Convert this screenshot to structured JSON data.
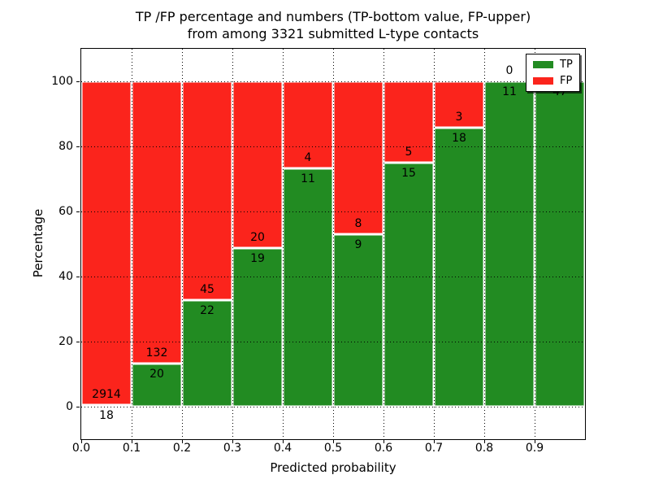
{
  "figure": {
    "title_line1": "TP /FP percentage and numbers (TP-bottom value, FP-upper)",
    "title_line2": "from among 3321 submitted L-type contacts",
    "xlabel": "Predicted probability",
    "ylabel": "Percentage"
  },
  "legend": {
    "items": [
      {
        "label": "TP",
        "color": "#228b22"
      },
      {
        "label": "FP",
        "color": "#fb241c"
      }
    ]
  },
  "colors": {
    "tp": "#228b22",
    "fp": "#fb241c",
    "background": "#ffffff",
    "text": "#000000",
    "grid": "#000000"
  },
  "chart_data": {
    "type": "bar",
    "stacked": true,
    "normalized": "each bar stacks to 100%",
    "title": "TP /FP percentage and numbers (TP-bottom value, FP-upper) from among 3321 submitted L-type contacts",
    "xlabel": "Predicted probability",
    "ylabel": "Percentage",
    "total_contacts": 3321,
    "bin_edges": [
      0.0,
      0.1,
      0.2,
      0.3,
      0.4,
      0.5,
      0.6,
      0.7,
      0.8,
      0.9,
      1.0
    ],
    "categories": [
      "0.0-0.1",
      "0.1-0.2",
      "0.2-0.3",
      "0.3-0.4",
      "0.4-0.5",
      "0.5-0.6",
      "0.6-0.7",
      "0.7-0.8",
      "0.8-0.9",
      "0.9-1.0"
    ],
    "series": [
      {
        "name": "TP",
        "color": "#228b22",
        "counts": [
          18,
          20,
          22,
          19,
          11,
          9,
          15,
          18,
          11,
          47
        ]
      },
      {
        "name": "FP",
        "color": "#fb241c",
        "counts": [
          2914,
          132,
          45,
          20,
          4,
          8,
          5,
          3,
          0,
          0
        ]
      }
    ],
    "tp_percent": [
      0.61,
      13.16,
      32.84,
      48.72,
      73.33,
      52.94,
      75.0,
      85.71,
      100.0,
      100.0
    ],
    "x_tick_labels": [
      "0.0",
      "0.1",
      "0.2",
      "0.3",
      "0.4",
      "0.5",
      "0.6",
      "0.7",
      "0.8",
      "0.9"
    ],
    "y_tick_values": [
      0,
      20,
      40,
      60,
      80,
      100
    ],
    "y_tick_labels": [
      "0",
      "20",
      "40",
      "60",
      "80",
      "100"
    ],
    "xlim": [
      0.0,
      1.0
    ],
    "ylim": [
      -10,
      110
    ],
    "grid": true,
    "legend_position": "upper right"
  }
}
